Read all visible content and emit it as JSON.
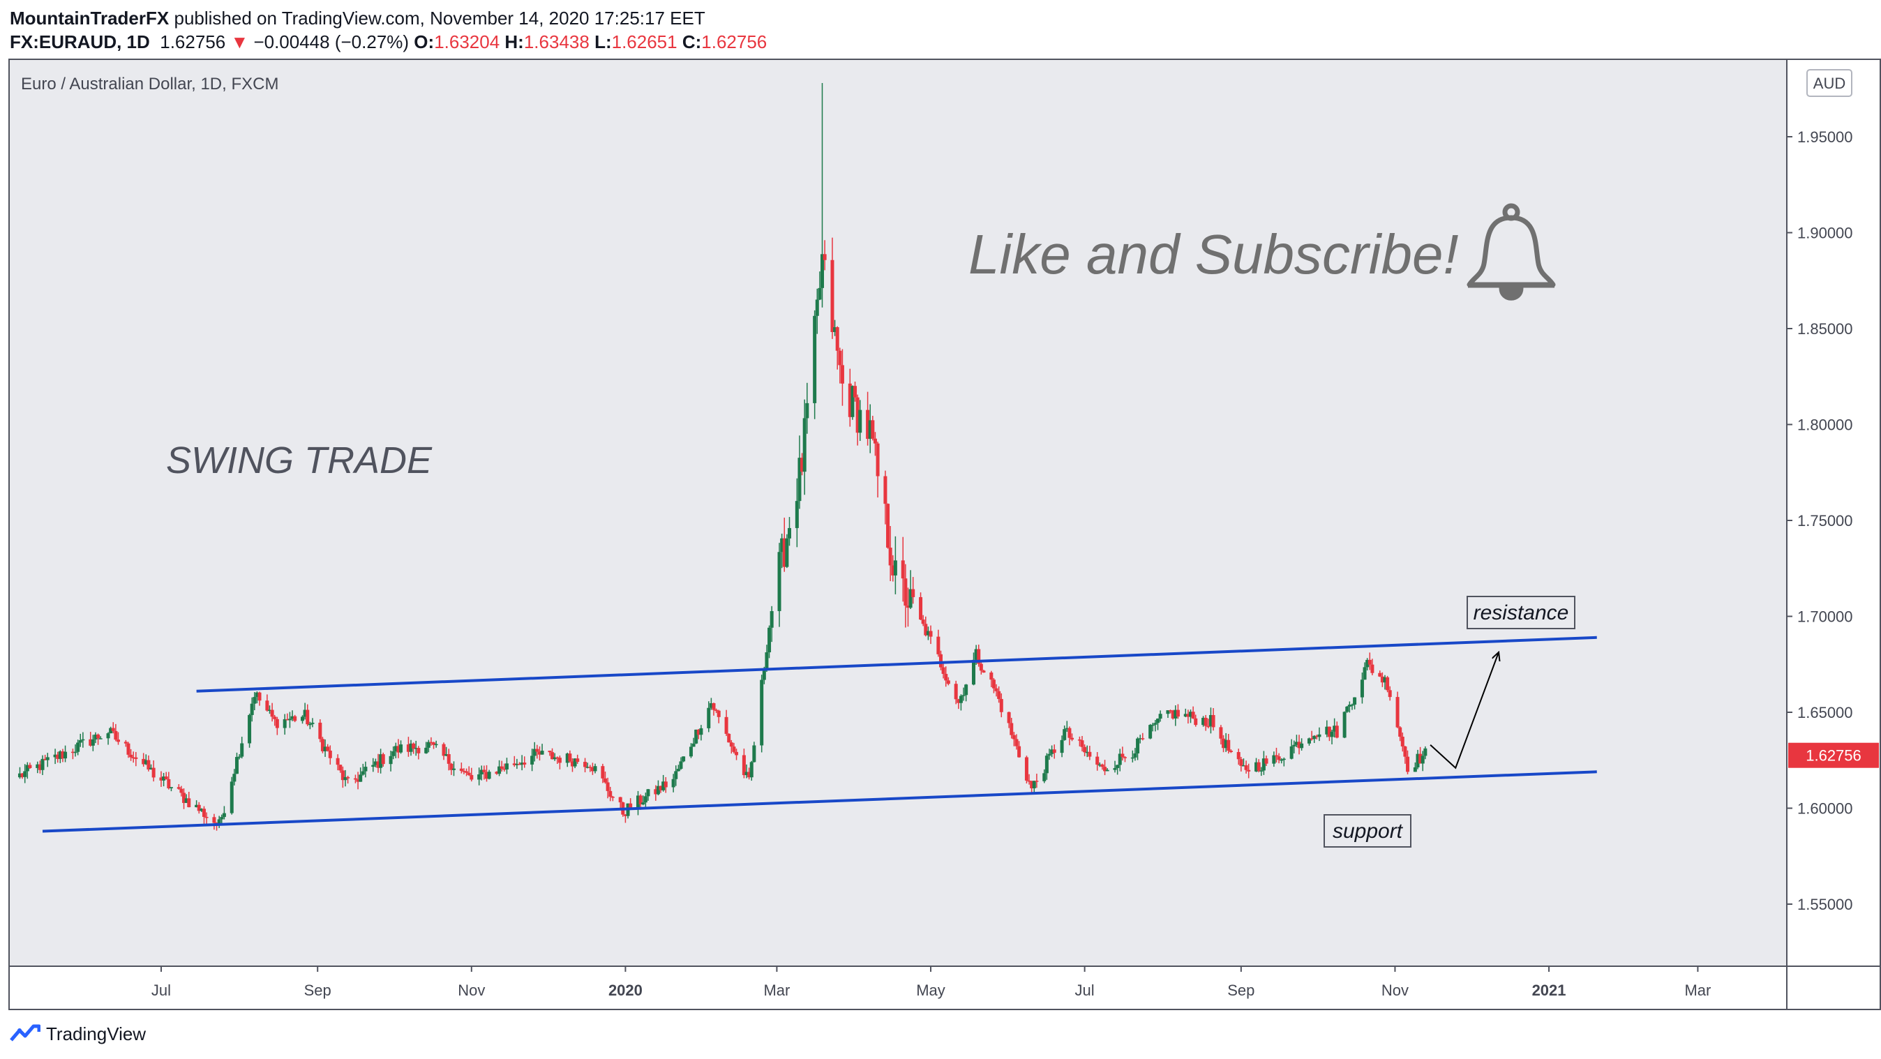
{
  "header": {
    "publisher": "MountainTraderFX",
    "published_text": "published on TradingView.com, November 14, 2020 17:25:17 EET"
  },
  "ohlc": {
    "symbol": "FX:EURAUD, 1D",
    "last": "1.62756",
    "change_arrow": "▼",
    "change": "−0.00448 (−0.27%)",
    "o_label": "O:",
    "o": "1.63204",
    "h_label": "H:",
    "h": "1.63438",
    "l_label": "L:",
    "l": "1.62651",
    "c_label": "C:",
    "c": "1.62756"
  },
  "chart_title": "Euro / Australian Dollar, 1D, FXCM",
  "currency_label": "AUD",
  "annotations": {
    "swing": "SWING TRADE",
    "like": "Like and Subscribe!",
    "resistance": "resistance",
    "support": "support"
  },
  "footer": {
    "brand": "TradingView",
    "logo_icon": "tradingview-logo-icon"
  },
  "colors": {
    "background": "#e9eaee",
    "up": "#1e7a4c",
    "down": "#e8363f",
    "trendline": "#1848c8",
    "axis_text": "#434651",
    "price_tag": "#e8363f"
  },
  "chart_data": {
    "type": "candlestick",
    "title": "Euro / Australian Dollar, 1D, FXCM",
    "x_tick_labels": [
      "Jul",
      "Sep",
      "Nov",
      "2020",
      "Mar",
      "May",
      "Jul",
      "Sep",
      "Nov",
      "2021",
      "Mar"
    ],
    "x_tick_dates": [
      "2019-07-01",
      "2019-09-01",
      "2019-11-01",
      "2020-01-01",
      "2020-03-01",
      "2020-05-01",
      "2020-07-01",
      "2020-09-01",
      "2020-11-01",
      "2021-01-01",
      "2021-03-01"
    ],
    "x_range": [
      "2019-05-02",
      "2021-04-05"
    ],
    "y_tick_labels": [
      "1.55000",
      "1.60000",
      "1.65000",
      "1.70000",
      "1.75000",
      "1.80000",
      "1.85000",
      "1.90000",
      "1.95000"
    ],
    "y_range": [
      1.518,
      1.99
    ],
    "last_price": "1.62756",
    "key_prices": [
      {
        "date": "2019-05-06",
        "close": 1.617
      },
      {
        "date": "2019-06-10",
        "close": 1.64
      },
      {
        "date": "2019-06-28",
        "close": 1.618
      },
      {
        "date": "2019-07-24",
        "close": 1.591
      },
      {
        "date": "2019-08-07",
        "close": 1.66
      },
      {
        "date": "2019-08-15",
        "close": 1.645
      },
      {
        "date": "2019-08-27",
        "close": 1.648
      },
      {
        "date": "2019-09-13",
        "close": 1.612
      },
      {
        "date": "2019-10-01",
        "close": 1.63
      },
      {
        "date": "2019-10-15",
        "close": 1.633
      },
      {
        "date": "2019-11-01",
        "close": 1.615
      },
      {
        "date": "2019-11-27",
        "close": 1.628
      },
      {
        "date": "2019-12-18",
        "close": 1.624
      },
      {
        "date": "2019-12-31",
        "close": 1.598
      },
      {
        "date": "2020-01-20",
        "close": 1.615
      },
      {
        "date": "2020-02-04",
        "close": 1.655
      },
      {
        "date": "2020-02-19",
        "close": 1.613
      },
      {
        "date": "2020-02-28",
        "close": 1.705
      },
      {
        "date": "2020-03-11",
        "close": 1.78
      },
      {
        "date": "2020-03-19",
        "close": 1.885
      },
      {
        "date": "2020-03-27",
        "close": 1.82
      },
      {
        "date": "2020-04-07",
        "close": 1.795
      },
      {
        "date": "2020-04-17",
        "close": 1.72
      },
      {
        "date": "2020-04-30",
        "close": 1.69
      },
      {
        "date": "2020-05-12",
        "close": 1.655
      },
      {
        "date": "2020-05-19",
        "close": 1.68
      },
      {
        "date": "2020-05-27",
        "close": 1.66
      },
      {
        "date": "2020-06-10",
        "close": 1.61
      },
      {
        "date": "2020-06-23",
        "close": 1.64
      },
      {
        "date": "2020-07-08",
        "close": 1.62
      },
      {
        "date": "2020-07-20",
        "close": 1.63
      },
      {
        "date": "2020-08-03",
        "close": 1.65
      },
      {
        "date": "2020-08-20",
        "close": 1.645
      },
      {
        "date": "2020-09-01",
        "close": 1.62
      },
      {
        "date": "2020-09-14",
        "close": 1.625
      },
      {
        "date": "2020-09-30",
        "close": 1.64
      },
      {
        "date": "2020-10-09",
        "close": 1.64
      },
      {
        "date": "2020-10-21",
        "close": 1.675
      },
      {
        "date": "2020-10-29",
        "close": 1.665
      },
      {
        "date": "2020-11-06",
        "close": 1.622
      },
      {
        "date": "2020-11-13",
        "close": 1.628
      }
    ],
    "spike_high": {
      "date": "2020-03-19",
      "high": 1.978
    },
    "trendlines": [
      {
        "name": "resistance",
        "from": {
          "date": "2019-07-15",
          "price": 1.661
        },
        "to": {
          "date": "2021-01-20",
          "price": 1.689
        }
      },
      {
        "name": "support",
        "from": {
          "date": "2019-05-15",
          "price": 1.588
        },
        "to": {
          "date": "2021-01-20",
          "price": 1.619
        }
      }
    ],
    "projection_arrow": [
      {
        "date": "2020-11-15",
        "price": 1.633
      },
      {
        "date": "2020-11-25",
        "price": 1.621
      },
      {
        "date": "2020-12-12",
        "price": 1.681
      }
    ]
  }
}
